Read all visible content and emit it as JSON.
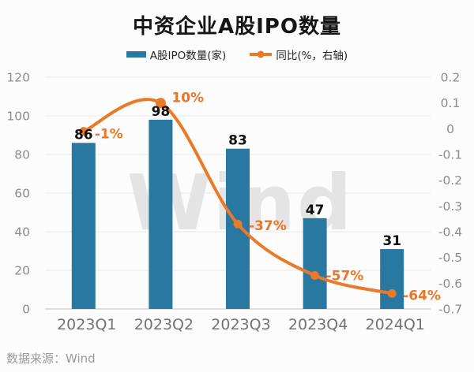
{
  "title": "中资企业A股IPO数量",
  "source": "数据来源：Wind",
  "watermark": "Wind",
  "legend": {
    "bar_label": "A股IPO数量(家)",
    "line_label": "同比(%，右轴)"
  },
  "colors": {
    "bar": "#2878a2",
    "line": "#e87a28",
    "label_orange": "#ee7524",
    "value_label": "#111111",
    "axis_text": "#8c8c8c",
    "xaxis_text": "#737373",
    "grid": "#e9e9e9",
    "axis_line": "#c4c4c4",
    "watermark": "#e4e4e4",
    "background": "#fcfcfc"
  },
  "chart_data": {
    "type": "combo (bar + line)",
    "categories": [
      "2023Q1",
      "2023Q2",
      "2023Q3",
      "2023Q4",
      "2024Q1"
    ],
    "series": [
      {
        "name": "A股IPO数量(家)",
        "type": "bar",
        "axis": "left",
        "values": [
          86,
          98,
          83,
          47,
          31
        ],
        "data_labels": [
          "86",
          "98",
          "83",
          "47",
          "31"
        ]
      },
      {
        "name": "同比(%，右轴)",
        "type": "line",
        "axis": "right",
        "values": [
          -0.01,
          0.1,
          -0.37,
          -0.57,
          -0.64
        ],
        "data_labels": [
          "-1%",
          "10%",
          "-37%",
          "-57%",
          "-64%"
        ]
      }
    ],
    "left_axis": {
      "min": 0,
      "max": 120,
      "step": 20,
      "ticks": [
        "0",
        "20",
        "40",
        "60",
        "80",
        "100",
        "120"
      ]
    },
    "right_axis": {
      "min": -0.7,
      "max": 0.2,
      "step": 0.1,
      "ticks": [
        "0.2",
        "0.1",
        "0",
        "-0.1",
        "-0.2",
        "-0.3",
        "-0.4",
        "-0.5",
        "-0.6",
        "-0.7"
      ]
    },
    "grid": "horizontal, at left-axis ticks only",
    "legend_position": "top-center"
  }
}
